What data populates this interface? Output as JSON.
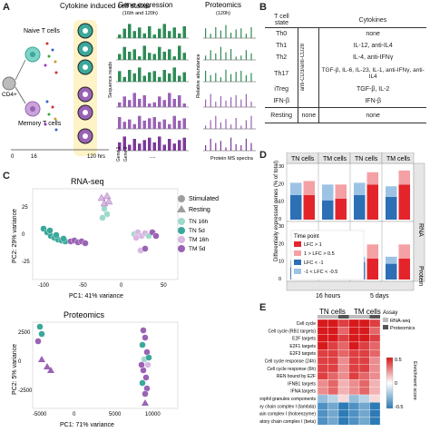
{
  "panels": {
    "a": "A",
    "b": "B",
    "c": "C",
    "d": "D",
    "e": "E"
  },
  "panelA": {
    "cytokine_title": "Cytokine induced cell states",
    "gene_expr_title": "Gene expression",
    "gene_expr_sub": "(16th and 120h)",
    "proteomics_title": "Proteomics",
    "proteomics_sub": "(120h)",
    "naive": "Naive T cells",
    "memory": "Memory T cells",
    "cd4": "CD4+",
    "hrs": "120 hrs",
    "t0": "0",
    "t16": "16",
    "seq_reads": "Sequence reads",
    "rel_abund": "Relative abundance",
    "gene1": "Gene 1",
    "gene2": "Gene 2",
    "dots": "....",
    "protein_ms": "Protein MS spectra"
  },
  "panelB": {
    "headers": [
      "T cell state",
      "Cytokines"
    ],
    "side_label": "anti-CD3/anti-CD28",
    "rows": [
      {
        "state": "Th0",
        "cyt": "none"
      },
      {
        "state": "Th1",
        "cyt": "IL-12, anti-IL4"
      },
      {
        "state": "Th2",
        "cyt": "IL-4, anti-IFNγ"
      },
      {
        "state": "Th17",
        "cyt": "TGF-β, IL-6, IL-23, IL-1, anti-IFNγ, anti-IL4"
      },
      {
        "state": "iTreg",
        "cyt": "TGF-β, IL-2"
      },
      {
        "state": "IFN-β",
        "cyt": "IFN-β"
      }
    ],
    "resting": {
      "state": "Resting",
      "mid": "none",
      "cyt": "none"
    }
  },
  "panelC": {
    "rna_title": "RNA-seq",
    "prot_title": "Proteomics",
    "rna_xlabel": "PC1: 41% variance",
    "rna_ylabel": "PC2: 29% variance",
    "prot_xlabel": "PC1: 71% variance",
    "prot_ylabel": "PC2: 5% variance",
    "legend_stim": "Stimulated",
    "legend_rest": "Resting",
    "legend_tn16": "TN 16h",
    "legend_tn5": "TN 5d",
    "legend_tm16": "TM 16h",
    "legend_tm5": "TM 5d",
    "rna_xticks": [
      "-100",
      "-50",
      "0",
      "50"
    ],
    "rna_yticks": [
      "25",
      "0",
      "-25"
    ],
    "prot_xticks": [
      "-5000",
      "0",
      "5000",
      "10000"
    ],
    "prot_yticks": [
      "2500",
      "0",
      "-2500"
    ],
    "colors": {
      "tn16": "#9fd9cc",
      "tn5": "#3aa89a",
      "tm16": "#d9b8e2",
      "tm5": "#9a63b5",
      "rest": "#9e9e9e"
    }
  },
  "panelD": {
    "col_headers": [
      "TN cells",
      "TM cells",
      "TN cells",
      "TM cells"
    ],
    "row_labels": [
      "RNA",
      "Protein"
    ],
    "bottom_labels": [
      "16 hours",
      "5 days"
    ],
    "ylabel": "Differentially expressed genes (% of total)",
    "yticks_top": [
      "30",
      "20",
      "10",
      "0"
    ],
    "yticks_bot": [
      "30",
      "20",
      "10",
      "0"
    ],
    "legend_title": "Time point",
    "legend": [
      "LFC > 1",
      "1 > LFC > 0.5",
      "LFC < -1",
      "-1 < LFC < -0.5"
    ],
    "colors": {
      "up1": "#e3242b",
      "up05": "#f4a0a4",
      "dn1": "#2d6fb5",
      "dn05": "#9cc3e4"
    }
  },
  "panelE": {
    "col_headers": [
      "TN cells",
      "TM cells"
    ],
    "assay_title": "Assay",
    "assay_legend": [
      "RNA-seq",
      "Proteomics"
    ],
    "rows": [
      "Cell cycle",
      "Cell cycle (RB1 targets)",
      "E2F targets",
      "E2F1 targets",
      "E2F3 targets",
      "Cell cycle response (24h)",
      "Cell cycle response (6h)",
      "REN bound by E2F",
      "IFNB1 targets",
      "IFNA targets",
      "Neutrophil granules components",
      "Respiratory chain complex I (lambda)",
      "Respiratory chain complex I (holoenzyme)",
      "Respiratory chain complex I (beta)"
    ],
    "scale_label": "Enrichment score",
    "scale_ticks": [
      "0.5",
      "0",
      "-0.5"
    ]
  },
  "chart_data": [
    {
      "type": "bar",
      "panel": "D",
      "categories": [
        "TN 16h",
        "TM 16h",
        "TN 5d",
        "TM 5d"
      ],
      "facets": [
        "RNA",
        "Protein"
      ],
      "series_RNA": [
        {
          "name": "LFC > 1",
          "values": [
            14,
            12,
            20,
            20
          ]
        },
        {
          "name": "1 > LFC > 0.5",
          "values": [
            8,
            8,
            7,
            8
          ]
        },
        {
          "name": "LFC < -1",
          "values": [
            14,
            11,
            14,
            13
          ]
        },
        {
          "name": "-1 < LFC < -0.5",
          "values": [
            7,
            9,
            7,
            6
          ]
        }
      ],
      "series_Protein": [
        {
          "name": "LFC > 1",
          "values": [
            12,
            15,
            12,
            12
          ]
        },
        {
          "name": "1 > LFC > 0.5",
          "values": [
            10,
            8,
            8,
            8
          ]
        },
        {
          "name": "LFC < -1",
          "values": [
            7,
            8,
            10,
            9
          ]
        },
        {
          "name": "-1 < LFC < -0.5",
          "values": [
            4,
            3,
            3,
            4
          ]
        }
      ],
      "ylim": [
        0,
        30
      ]
    },
    {
      "type": "heatmap",
      "panel": "E",
      "rows": [
        "Cell cycle",
        "Cell cycle (RB1 targets)",
        "E2F targets",
        "E2F1 targets",
        "E2F3 targets",
        "Cell cycle response (24h)",
        "Cell cycle response (6h)",
        "REN bound by E2F",
        "IFNB1 targets",
        "IFNA targets",
        "Neutrophil granules components",
        "Respiratory chain complex I (lambda)",
        "Respiratory chain complex I (holoenzyme)",
        "Respiratory chain complex I (beta)"
      ],
      "columns": [
        "TN RNA 16h",
        "TN RNA 5d",
        "TN Prot",
        "TM RNA 16h",
        "TM RNA 5d",
        "TM Prot"
      ],
      "values": [
        [
          0.6,
          0.6,
          0.5,
          0.6,
          0.6,
          0.5
        ],
        [
          0.6,
          0.6,
          0.4,
          0.6,
          0.6,
          0.4
        ],
        [
          0.6,
          0.6,
          0.5,
          0.6,
          0.6,
          0.5
        ],
        [
          0.6,
          0.5,
          0.4,
          0.6,
          0.5,
          0.4
        ],
        [
          0.5,
          0.5,
          0.4,
          0.5,
          0.5,
          0.4
        ],
        [
          0.5,
          0.5,
          0.3,
          0.5,
          0.5,
          0.3
        ],
        [
          0.5,
          0.5,
          0.3,
          0.5,
          0.5,
          0.3
        ],
        [
          0.5,
          0.4,
          0.3,
          0.5,
          0.4,
          0.3
        ],
        [
          0.3,
          0.4,
          0.2,
          0.3,
          0.4,
          0.2
        ],
        [
          0.3,
          0.4,
          0.2,
          0.3,
          0.4,
          0.2
        ],
        [
          -0.3,
          -0.2,
          0.1,
          -0.3,
          -0.2,
          0.1
        ],
        [
          -0.5,
          -0.4,
          -0.6,
          -0.5,
          -0.4,
          -0.6
        ],
        [
          -0.5,
          -0.4,
          -0.6,
          -0.5,
          -0.4,
          -0.6
        ],
        [
          -0.5,
          -0.4,
          -0.6,
          -0.5,
          -0.4,
          -0.6
        ]
      ],
      "scale": [
        -0.5,
        0.5
      ]
    }
  ]
}
